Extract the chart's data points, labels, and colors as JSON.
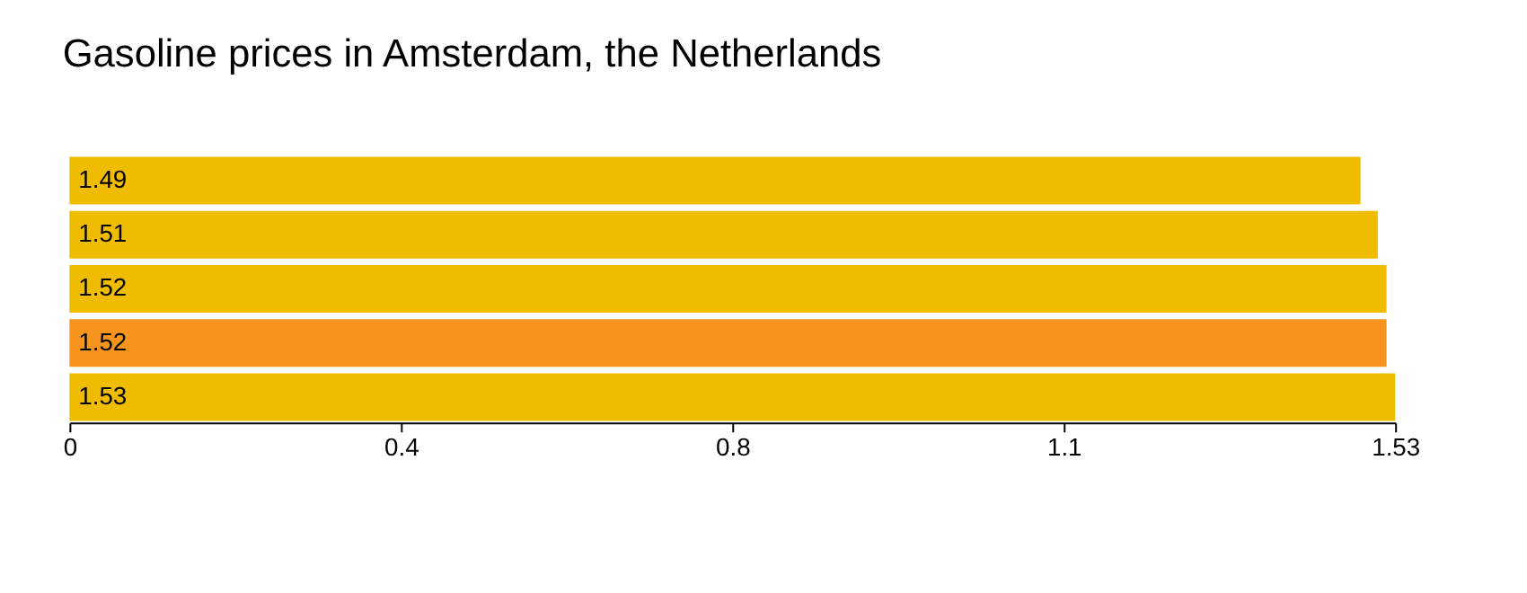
{
  "chart_data": {
    "type": "bar",
    "orientation": "horizontal",
    "title": "Gasoline prices in Amsterdam, the  Netherlands",
    "categories": [
      null,
      null,
      null,
      null,
      null
    ],
    "values": [
      1.49,
      1.51,
      1.52,
      1.52,
      1.53
    ],
    "colors": [
      "#f0bc00",
      "#f0bc00",
      "#f0bc00",
      "#f7941d",
      "#f0bc00"
    ],
    "xlim": [
      0,
      1.53
    ],
    "xticks": [
      0,
      {
        "value": 0.3825,
        "label": "0.4"
      },
      {
        "value": 0.765,
        "label": "0.8"
      },
      {
        "value": 1.1475,
        "label": "1.1"
      },
      1.53
    ],
    "data_labels": true,
    "grid": false
  }
}
